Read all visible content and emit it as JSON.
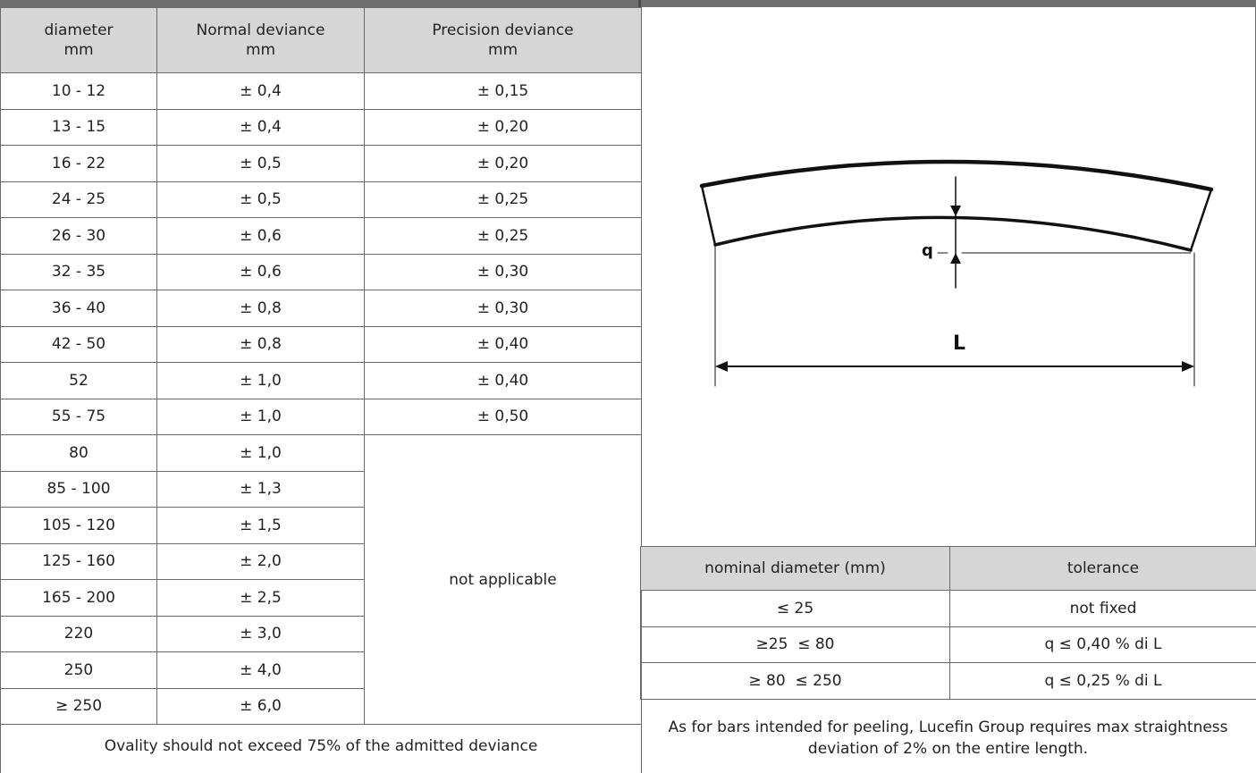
{
  "left_table": {
    "headers": [
      "diameter\nmm",
      "Normal deviance\nmm",
      "Precision deviance\nmm"
    ],
    "rows": [
      {
        "diameter": "10 - 12",
        "normal": "± 0,4",
        "precision": "± 0,15"
      },
      {
        "diameter": "13 - 15",
        "normal": "± 0,4",
        "precision": "± 0,20"
      },
      {
        "diameter": "16 - 22",
        "normal": "± 0,5",
        "precision": "± 0,20"
      },
      {
        "diameter": "24 - 25",
        "normal": "± 0,5",
        "precision": "± 0,25"
      },
      {
        "diameter": "26 - 30",
        "normal": "± 0,6",
        "precision": "± 0,25"
      },
      {
        "diameter": "32 - 35",
        "normal": "± 0,6",
        "precision": "± 0,30"
      },
      {
        "diameter": "36 - 40",
        "normal": "± 0,8",
        "precision": "± 0,30"
      },
      {
        "diameter": "42 - 50",
        "normal": "± 0,8",
        "precision": "± 0,40"
      },
      {
        "diameter": "52",
        "normal": "± 1,0",
        "precision": "± 0,40"
      },
      {
        "diameter": "55 - 75",
        "normal": "± 1,0",
        "precision": "± 0,50"
      },
      {
        "diameter": "80",
        "normal": "± 1,0"
      },
      {
        "diameter": "85 - 100",
        "normal": "± 1,3"
      },
      {
        "diameter": "105 - 120",
        "normal": "± 1,5"
      },
      {
        "diameter": "125 - 160",
        "normal": "± 2,0"
      },
      {
        "diameter": "165 - 200",
        "normal": "± 2,5"
      },
      {
        "diameter": "220",
        "normal": "± 3,0"
      },
      {
        "diameter": "250",
        "normal": "± 4,0"
      },
      {
        "diameter": "≥ 250",
        "normal": "± 6,0"
      }
    ],
    "not_applicable": "not applicable",
    "note": "Ovality should not exceed 75% of the admitted deviance"
  },
  "diagram": {
    "label_q": "q",
    "label_L": "L"
  },
  "tolerance_table": {
    "headers": [
      "nominal diameter (mm)",
      "tolerance"
    ],
    "rows": [
      {
        "diameter": "≤ 25",
        "tolerance": "not fixed"
      },
      {
        "diameter": "≥25  ≤ 80",
        "tolerance": "q ≤ 0,40 % di L"
      },
      {
        "diameter": "≥ 80  ≤ 250",
        "tolerance": "q ≤ 0,25 % di L"
      }
    ]
  },
  "peeling_note": "As for bars intended for peeling, Lucefin Group requires max straightness deviation of 2% on the entire length."
}
